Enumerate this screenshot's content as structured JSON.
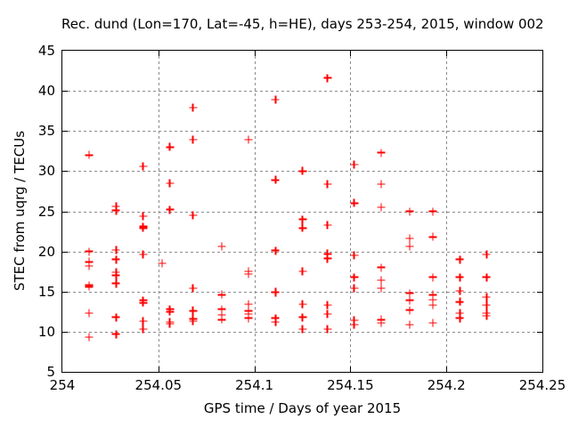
{
  "chart_data": {
    "type": "scatter",
    "title": "Rec. dund (Lon=170, Lat=-45, h=HE), days 253-254, 2015, window 002",
    "xlabel": "GPS time / Days of year 2015",
    "ylabel": "STEC from uqrg / TECUs",
    "xlim": [
      254,
      254.25
    ],
    "ylim": [
      5,
      45
    ],
    "xticks": [
      "254",
      "254.05",
      "254.1",
      "254.15",
      "254.2",
      "254.25"
    ],
    "yticks": [
      "5",
      "10",
      "15",
      "20",
      "25",
      "30",
      "35",
      "40",
      "45"
    ],
    "grid": true,
    "legend": "none",
    "marker": "plus",
    "colors": {
      "marker": "#ff0000",
      "grid": "#8c8c8c",
      "border": "#000000",
      "text": "#000000",
      "background": "#ffffff"
    },
    "points": [
      [
        254.014,
        32.0
      ],
      [
        254.014,
        20.0
      ],
      [
        254.014,
        18.7
      ],
      [
        254.014,
        18.2
      ],
      [
        254.014,
        15.8
      ],
      [
        254.014,
        15.6
      ],
      [
        254.014,
        12.3
      ],
      [
        254.014,
        9.3
      ],
      [
        254.028,
        25.6
      ],
      [
        254.028,
        25.1
      ],
      [
        254.028,
        20.2
      ],
      [
        254.028,
        19.0
      ],
      [
        254.028,
        17.4
      ],
      [
        254.028,
        17.0
      ],
      [
        254.028,
        16.0
      ],
      [
        254.028,
        11.8
      ],
      [
        254.028,
        9.7
      ],
      [
        254.042,
        30.6
      ],
      [
        254.042,
        24.4
      ],
      [
        254.042,
        23.1
      ],
      [
        254.042,
        22.9
      ],
      [
        254.042,
        19.6
      ],
      [
        254.042,
        13.9
      ],
      [
        254.042,
        13.6
      ],
      [
        254.042,
        11.3
      ],
      [
        254.042,
        10.3
      ],
      [
        254.052,
        18.5
      ],
      [
        254.056,
        33.0
      ],
      [
        254.056,
        28.5
      ],
      [
        254.056,
        25.2
      ],
      [
        254.056,
        12.8
      ],
      [
        254.056,
        12.5
      ],
      [
        254.056,
        11.2
      ],
      [
        254.056,
        11.0
      ],
      [
        254.068,
        37.9
      ],
      [
        254.068,
        33.9
      ],
      [
        254.068,
        24.5
      ],
      [
        254.068,
        15.4
      ],
      [
        254.068,
        12.6
      ],
      [
        254.068,
        11.6
      ],
      [
        254.068,
        11.3
      ],
      [
        254.083,
        20.6
      ],
      [
        254.083,
        14.6
      ],
      [
        254.083,
        12.8
      ],
      [
        254.083,
        12.1
      ],
      [
        254.083,
        11.5
      ],
      [
        254.097,
        33.9
      ],
      [
        254.097,
        17.5
      ],
      [
        254.097,
        17.2
      ],
      [
        254.097,
        13.4
      ],
      [
        254.097,
        12.6
      ],
      [
        254.097,
        12.2
      ],
      [
        254.097,
        11.7
      ],
      [
        254.111,
        38.9
      ],
      [
        254.111,
        28.9
      ],
      [
        254.111,
        20.1
      ],
      [
        254.111,
        15.0
      ],
      [
        254.111,
        14.9
      ],
      [
        254.111,
        11.7
      ],
      [
        254.111,
        11.2
      ],
      [
        254.125,
        30.0
      ],
      [
        254.125,
        24.0
      ],
      [
        254.125,
        22.9
      ],
      [
        254.125,
        17.5
      ],
      [
        254.125,
        13.4
      ],
      [
        254.125,
        11.8
      ],
      [
        254.125,
        10.3
      ],
      [
        254.138,
        41.6
      ],
      [
        254.138,
        28.4
      ],
      [
        254.138,
        23.3
      ],
      [
        254.138,
        19.7
      ],
      [
        254.138,
        19.1
      ],
      [
        254.138,
        13.3
      ],
      [
        254.138,
        12.2
      ],
      [
        254.138,
        10.3
      ],
      [
        254.152,
        30.8
      ],
      [
        254.152,
        26.0
      ],
      [
        254.152,
        19.5
      ],
      [
        254.152,
        16.8
      ],
      [
        254.152,
        15.4
      ],
      [
        254.152,
        11.4
      ],
      [
        254.152,
        10.9
      ],
      [
        254.166,
        32.3
      ],
      [
        254.166,
        28.4
      ],
      [
        254.166,
        25.5
      ],
      [
        254.166,
        18.0
      ],
      [
        254.166,
        16.4
      ],
      [
        254.166,
        15.4
      ],
      [
        254.166,
        11.5
      ],
      [
        254.166,
        11.1
      ],
      [
        254.181,
        25.0
      ],
      [
        254.181,
        21.6
      ],
      [
        254.181,
        20.6
      ],
      [
        254.181,
        14.8
      ],
      [
        254.181,
        13.9
      ],
      [
        254.181,
        12.7
      ],
      [
        254.181,
        10.9
      ],
      [
        254.193,
        25.0
      ],
      [
        254.193,
        21.8
      ],
      [
        254.193,
        16.8
      ],
      [
        254.193,
        14.6
      ],
      [
        254.193,
        14.0
      ],
      [
        254.193,
        13.3
      ],
      [
        254.193,
        11.1
      ],
      [
        254.207,
        19.0
      ],
      [
        254.207,
        16.8
      ],
      [
        254.207,
        15.1
      ],
      [
        254.207,
        13.7
      ],
      [
        254.207,
        12.3
      ],
      [
        254.207,
        11.7
      ],
      [
        254.221,
        19.6
      ],
      [
        254.221,
        16.8
      ],
      [
        254.221,
        14.3
      ],
      [
        254.221,
        13.3
      ],
      [
        254.221,
        12.3
      ],
      [
        254.221,
        12.0
      ]
    ]
  }
}
